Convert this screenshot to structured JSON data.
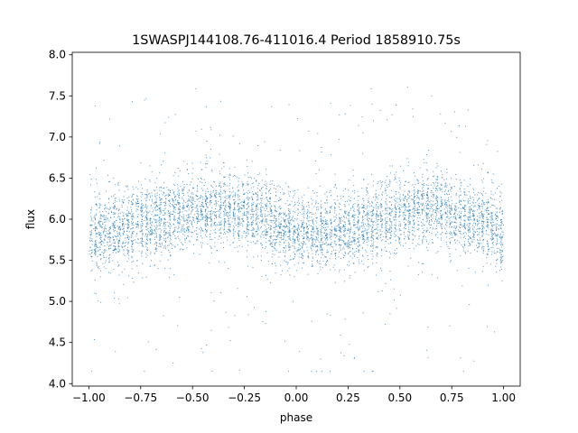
{
  "chart_data": {
    "type": "scatter",
    "title": "1SWASPJ144108.76-411016.4 Period 1858910.75s",
    "xlabel": "phase",
    "ylabel": "flux",
    "xlim": [
      -1.08,
      1.08
    ],
    "ylim": [
      3.97,
      8.03
    ],
    "x_ticks": [
      -1.0,
      -0.75,
      -0.5,
      -0.25,
      0.0,
      0.25,
      0.5,
      0.75,
      1.0
    ],
    "x_tick_labels": [
      "−1.00",
      "−0.75",
      "−0.50",
      "−0.25",
      "0.00",
      "0.25",
      "0.50",
      "0.75",
      "1.00"
    ],
    "y_ticks": [
      4.0,
      4.5,
      5.0,
      5.5,
      6.0,
      6.5,
      7.0,
      7.5,
      8.0
    ],
    "y_tick_labels": [
      "4.0",
      "4.5",
      "5.0",
      "5.5",
      "6.0",
      "6.5",
      "7.0",
      "7.5",
      "8.0"
    ],
    "grid": false,
    "marker_color": "#1f77b4",
    "series": [
      {
        "x_range": [
          -1.0,
          1.0
        ],
        "y_range": [
          4.15,
          7.85
        ],
        "mean_flux_profile": {
          "phase": [
            -1.0,
            -0.9,
            -0.8,
            -0.7,
            -0.6,
            -0.5,
            -0.4,
            -0.3,
            -0.2,
            -0.1,
            0.0,
            0.1,
            0.2,
            0.3,
            0.4,
            0.5,
            0.6,
            0.7,
            0.8,
            0.9,
            1.0
          ],
          "flux": [
            5.82,
            5.85,
            5.9,
            5.98,
            6.05,
            6.1,
            6.12,
            6.12,
            6.05,
            5.95,
            5.85,
            5.82,
            5.85,
            5.9,
            5.98,
            6.05,
            6.12,
            6.12,
            6.05,
            5.95,
            5.85
          ]
        },
        "typical_scatter": 0.22
      }
    ]
  }
}
